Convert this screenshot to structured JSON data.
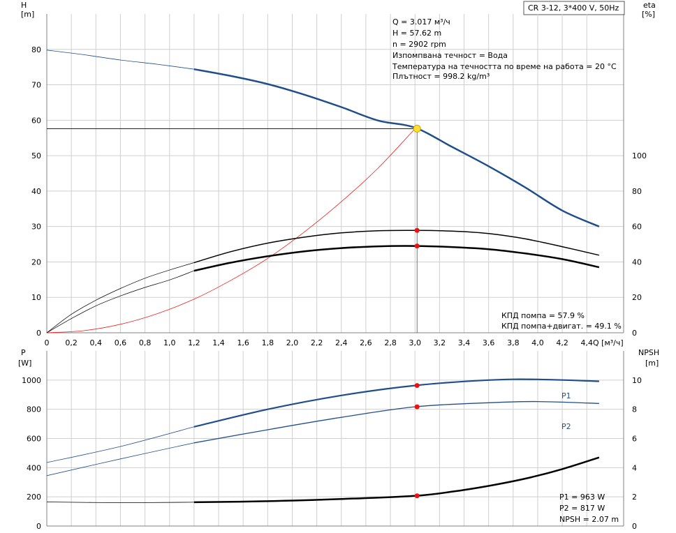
{
  "title_box": "CR 3-12, 3*400 V, 50Hz",
  "chart_data": [
    {
      "type": "line",
      "panel": "head-efficiency",
      "ylabel_left": "H",
      "ylabel_left_unit": "[m]",
      "ylabel_right": "eta",
      "ylabel_right_unit": "[%]",
      "xlabel": "Q [м³/ч]",
      "xlim": [
        0,
        4.7
      ],
      "ylim_left": [
        0,
        90
      ],
      "ylim_right": [
        0,
        180
      ],
      "x_ticks": [
        "0",
        "0,2",
        "0,4",
        "0,6",
        "0,8",
        "1,0",
        "1,2",
        "1,4",
        "1,6",
        "1,8",
        "2,0",
        "2,2",
        "2,4",
        "2,6",
        "2,8",
        "3,0",
        "3,2",
        "3,4",
        "3,6",
        "3,8",
        "4,0",
        "4,2",
        "4,4"
      ],
      "y_left_ticks": [
        "0",
        "10",
        "20",
        "30",
        "40",
        "50",
        "60",
        "70",
        "80"
      ],
      "y_right_ticks": [
        "0",
        "20",
        "40",
        "60",
        "80",
        "100"
      ],
      "series": [
        {
          "key": "H",
          "axis": "left",
          "color": "#1f4e8c",
          "x": [
            0,
            0.3,
            0.6,
            0.9,
            1.2,
            1.5,
            1.8,
            2.1,
            2.4,
            2.7,
            3.0,
            3.3,
            3.6,
            3.9,
            4.2,
            4.5
          ],
          "y": [
            79.8,
            78.5,
            77.0,
            75.8,
            74.4,
            72.5,
            70.2,
            67.2,
            63.7,
            59.9,
            57.9,
            52.5,
            47.0,
            41.0,
            34.5,
            30.0
          ]
        },
        {
          "key": "eta-pump",
          "axis": "left",
          "x": [
            0,
            0.2,
            0.4,
            0.6,
            0.8,
            1.0,
            1.2,
            1.5,
            1.8,
            2.1,
            2.4,
            2.7,
            3.0,
            3.3,
            3.6,
            3.9,
            4.2,
            4.5
          ],
          "y": [
            0,
            5.2,
            9.2,
            12.5,
            15.4,
            17.7,
            19.8,
            22.9,
            25.3,
            27.0,
            28.2,
            28.8,
            28.9,
            28.7,
            28.0,
            26.5,
            24.3,
            21.9
          ]
        },
        {
          "key": "eta-pump-motor",
          "axis": "left",
          "x": [
            0,
            0.2,
            0.4,
            0.6,
            0.8,
            1.0,
            1.2,
            1.5,
            1.8,
            2.1,
            2.4,
            2.7,
            3.0,
            3.3,
            3.6,
            3.9,
            4.2,
            4.5
          ],
          "y": [
            0,
            4.0,
            7.6,
            10.4,
            12.8,
            14.9,
            17.5,
            19.8,
            21.6,
            23.0,
            23.9,
            24.4,
            24.5,
            24.2,
            23.6,
            22.4,
            20.8,
            18.5
          ]
        },
        {
          "key": "system-curve",
          "axis": "left",
          "color": "#ee2222",
          "x": [
            0,
            0.3,
            0.6,
            0.9,
            1.2,
            1.5,
            1.8,
            2.1,
            2.4,
            2.7,
            3.0
          ],
          "y": [
            0,
            0.6,
            2.4,
            5.4,
            9.5,
            14.8,
            21.0,
            28.5,
            37.0,
            46.5,
            57.6
          ]
        }
      ],
      "operating_point": {
        "q": 3.017,
        "h": 57.62,
        "eta_pump": 28.9,
        "eta_pump_motor": 24.5
      },
      "annotations": [
        "Q = 3.017 м³/ч",
        "H = 57.62 m",
        "n = 2902 rpm",
        "Изпомпвана течност = Вода",
        "Температура на течността по време на работа = 20 °C",
        "Плътност = 998.2 kg/m³"
      ],
      "efficiency_notes": [
        "КПД помпа = 57.9 %",
        "КПД помпа+двигат. = 49.1 %"
      ]
    },
    {
      "type": "line",
      "panel": "power-npsh",
      "ylabel_left": "P",
      "ylabel_left_unit": "[W]",
      "ylabel_right": "NPSH",
      "ylabel_right_unit": "[m]",
      "xlim": [
        0,
        4.7
      ],
      "ylim_left": [
        0,
        1200
      ],
      "ylim_right": [
        0,
        12
      ],
      "y_left_ticks": [
        "0",
        "200",
        "400",
        "600",
        "800",
        "1000"
      ],
      "y_right_ticks": [
        "0",
        "2",
        "4",
        "6",
        "8",
        "10"
      ],
      "series": [
        {
          "key": "P1",
          "name": "P1",
          "axis": "left",
          "color": "#1f4e8c",
          "x": [
            0,
            0.6,
            1.2,
            1.8,
            2.4,
            3.0,
            3.6,
            4.0,
            4.5
          ],
          "y": [
            435,
            545,
            680,
            800,
            895,
            963,
            1000,
            1005,
            992
          ]
        },
        {
          "key": "P2",
          "name": "P2",
          "axis": "left",
          "color": "#1f4e8c",
          "x": [
            0,
            0.6,
            1.2,
            1.8,
            2.4,
            3.0,
            3.6,
            4.0,
            4.5
          ],
          "y": [
            345,
            460,
            570,
            660,
            745,
            817,
            845,
            853,
            840
          ]
        },
        {
          "key": "NPSH",
          "axis": "right",
          "x": [
            0,
            0.6,
            1.2,
            1.8,
            2.4,
            3.0,
            3.3,
            3.6,
            3.9,
            4.2,
            4.5
          ],
          "y": [
            1.65,
            1.6,
            1.63,
            1.7,
            1.85,
            2.07,
            2.35,
            2.75,
            3.25,
            3.9,
            4.7
          ]
        }
      ],
      "operating_point": {
        "q": 3.017,
        "p1": 963,
        "p2": 817,
        "npsh": 2.07
      },
      "readout": [
        "P1 = 963 W",
        "P2 = 817 W",
        "NPSH = 2.07 m"
      ]
    }
  ]
}
